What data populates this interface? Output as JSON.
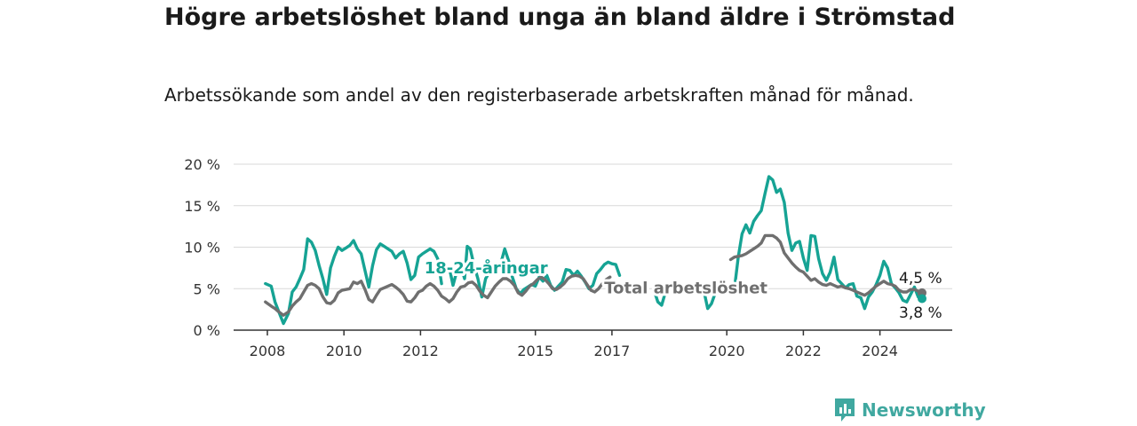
{
  "title": "Högre arbetslöshet bland unga än bland äldre i Strömstad",
  "subtitle": "Arbetssökande som andel av den registerbaserade arbetskraften månad för månad.",
  "brand": {
    "name": "Newsworthy",
    "icon": "newsworthy-logo-icon"
  },
  "colors": {
    "youth": "#16a394",
    "total": "#6f6f6f",
    "grid": "#d9d9d9",
    "axis": "#333333",
    "brand": "#40a8a0"
  },
  "chart_data": {
    "type": "line",
    "title": "Högre arbetslöshet bland unga än bland äldre i Strömstad",
    "xlabel": "",
    "ylabel": "",
    "xlim": [
      2008.0,
      2025.1
    ],
    "ylim": [
      0,
      20
    ],
    "y_ticks": [
      0,
      5,
      10,
      15,
      20
    ],
    "y_tick_labels": [
      "0 %",
      "5 %",
      "10 %",
      "15 %",
      "20 %"
    ],
    "x_ticks": [
      2008,
      2010,
      2012,
      2015,
      2017,
      2020,
      2022,
      2024
    ],
    "x_tick_labels": [
      "2008",
      "2010",
      "2012",
      "2015",
      "2017",
      "2020",
      "2022",
      "2024"
    ],
    "x_tick_positions": [
      2008.0,
      2010.0,
      2012.0,
      2015.0,
      2017.0,
      2020.0,
      2022.0,
      2024.0
    ],
    "grid": true,
    "legend": "inline labels",
    "series": [
      {
        "name": "18-24-åringar",
        "label_position": [
          2012.1,
          7.6
        ],
        "end_label": "3,8 %",
        "points": [
          [
            2007.95,
            5.6
          ],
          [
            2008.1,
            5.3
          ],
          [
            2008.2,
            3.4
          ],
          [
            2008.3,
            2.2
          ],
          [
            2008.42,
            0.8
          ],
          [
            2008.55,
            2.0
          ],
          [
            2008.65,
            4.6
          ],
          [
            2008.75,
            5.2
          ],
          [
            2008.85,
            6.2
          ],
          [
            2008.95,
            7.3
          ],
          [
            2009.05,
            11.0
          ],
          [
            2009.15,
            10.6
          ],
          [
            2009.25,
            9.6
          ],
          [
            2009.35,
            7.8
          ],
          [
            2009.45,
            6.2
          ],
          [
            2009.55,
            4.3
          ],
          [
            2009.65,
            7.5
          ],
          [
            2009.75,
            8.9
          ],
          [
            2009.85,
            10.0
          ],
          [
            2009.95,
            9.6
          ],
          [
            2010.05,
            9.9
          ],
          [
            2010.15,
            10.2
          ],
          [
            2010.25,
            10.8
          ],
          [
            2010.35,
            9.8
          ],
          [
            2010.45,
            9.2
          ],
          [
            2010.55,
            7.2
          ],
          [
            2010.65,
            5.2
          ],
          [
            2010.75,
            7.8
          ],
          [
            2010.85,
            9.7
          ],
          [
            2010.95,
            10.4
          ],
          [
            2011.05,
            10.1
          ],
          [
            2011.15,
            9.8
          ],
          [
            2011.25,
            9.5
          ],
          [
            2011.35,
            8.7
          ],
          [
            2011.45,
            9.2
          ],
          [
            2011.55,
            9.5
          ],
          [
            2011.65,
            8.1
          ],
          [
            2011.75,
            6.1
          ],
          [
            2011.85,
            6.6
          ],
          [
            2011.95,
            8.8
          ],
          [
            2012.05,
            9.2
          ],
          [
            2012.15,
            9.5
          ],
          [
            2012.25,
            9.8
          ],
          [
            2012.35,
            9.5
          ],
          [
            2012.45,
            8.6
          ],
          [
            2012.55,
            5.6
          ]
        ],
        "points_b": [
          [
            2012.75,
            7.6
          ],
          [
            2012.85,
            5.4
          ],
          [
            2012.95,
            7.1
          ],
          [
            2013.05,
            7.8
          ],
          [
            2013.15,
            6.2
          ],
          [
            2013.22,
            10.1
          ],
          [
            2013.3,
            9.8
          ],
          [
            2013.4,
            7.8
          ],
          [
            2013.5,
            6.2
          ],
          [
            2013.6,
            4.0
          ],
          [
            2013.7,
            6.2
          ],
          [
            2013.8,
            7.0
          ],
          [
            2013.9,
            7.6
          ],
          [
            2014.0,
            6.9
          ],
          [
            2014.1,
            8.1
          ],
          [
            2014.2,
            9.8
          ],
          [
            2014.3,
            8.4
          ],
          [
            2014.4,
            6.4
          ],
          [
            2014.5,
            5.0
          ],
          [
            2014.6,
            4.4
          ],
          [
            2014.7,
            4.9
          ],
          [
            2014.8,
            5.2
          ],
          [
            2014.9,
            5.5
          ],
          [
            2015.0,
            5.3
          ],
          [
            2015.1,
            6.4
          ],
          [
            2015.2,
            5.9
          ],
          [
            2015.3,
            6.6
          ],
          [
            2015.4,
            5.4
          ],
          [
            2015.5,
            4.8
          ],
          [
            2015.6,
            5.3
          ],
          [
            2015.7,
            5.8
          ],
          [
            2015.8,
            7.3
          ],
          [
            2015.9,
            7.2
          ],
          [
            2016.0,
            6.6
          ],
          [
            2016.1,
            7.1
          ],
          [
            2016.2,
            6.5
          ],
          [
            2016.3,
            5.8
          ],
          [
            2016.4,
            5.0
          ],
          [
            2016.5,
            5.4
          ],
          [
            2016.6,
            6.8
          ],
          [
            2016.7,
            7.3
          ],
          [
            2016.8,
            7.9
          ],
          [
            2016.9,
            8.2
          ],
          [
            2017.0,
            8.0
          ],
          [
            2017.1,
            7.9
          ],
          [
            2017.2,
            6.6
          ]
        ],
        "points_c": [
          [
            2018.1,
            4.8
          ],
          [
            2018.2,
            3.4
          ],
          [
            2018.3,
            3.0
          ],
          [
            2018.4,
            4.6
          ]
        ],
        "points_d": [
          [
            2019.4,
            4.8
          ],
          [
            2019.5,
            2.6
          ],
          [
            2019.6,
            3.2
          ],
          [
            2019.7,
            4.5
          ],
          [
            2019.8,
            5.0
          ],
          [
            2019.9,
            4.7
          ],
          [
            2020.0,
            5.0
          ],
          [
            2020.1,
            4.5
          ],
          [
            2020.2,
            5.0
          ],
          [
            2020.3,
            8.8
          ],
          [
            2020.4,
            11.6
          ],
          [
            2020.5,
            12.7
          ],
          [
            2020.6,
            11.7
          ],
          [
            2020.7,
            13.1
          ],
          [
            2020.8,
            13.8
          ],
          [
            2020.9,
            14.4
          ],
          [
            2021.0,
            16.5
          ],
          [
            2021.1,
            18.5
          ],
          [
            2021.2,
            18.1
          ],
          [
            2021.3,
            16.6
          ],
          [
            2021.4,
            17.0
          ],
          [
            2021.5,
            15.4
          ],
          [
            2021.6,
            11.7
          ],
          [
            2021.7,
            9.6
          ],
          [
            2021.8,
            10.5
          ],
          [
            2021.9,
            10.7
          ],
          [
            2022.0,
            8.7
          ],
          [
            2022.1,
            7.2
          ],
          [
            2022.2,
            11.4
          ],
          [
            2022.3,
            11.3
          ],
          [
            2022.4,
            8.6
          ],
          [
            2022.5,
            6.8
          ],
          [
            2022.6,
            6.0
          ],
          [
            2022.7,
            7.0
          ],
          [
            2022.8,
            8.8
          ],
          [
            2022.9,
            6.1
          ],
          [
            2023.0,
            5.6
          ],
          [
            2023.1,
            5.1
          ],
          [
            2023.2,
            5.5
          ],
          [
            2023.3,
            5.6
          ],
          [
            2023.4,
            4.1
          ],
          [
            2023.5,
            3.9
          ],
          [
            2023.6,
            2.6
          ],
          [
            2023.7,
            4.0
          ],
          [
            2023.8,
            4.6
          ],
          [
            2023.9,
            5.5
          ],
          [
            2024.0,
            6.6
          ],
          [
            2024.1,
            8.3
          ],
          [
            2024.2,
            7.5
          ],
          [
            2024.3,
            5.6
          ],
          [
            2024.4,
            5.1
          ],
          [
            2024.5,
            4.5
          ],
          [
            2024.6,
            3.6
          ],
          [
            2024.7,
            3.4
          ],
          [
            2024.8,
            4.3
          ],
          [
            2024.9,
            5.2
          ],
          [
            2025.0,
            4.0
          ],
          [
            2025.1,
            3.8
          ]
        ]
      },
      {
        "name": "Total arbetslöshet",
        "label_position": [
          2016.8,
          5.2
        ],
        "end_label": "4,5 %",
        "points": [
          [
            2007.95,
            3.4
          ],
          [
            2008.1,
            2.9
          ],
          [
            2008.2,
            2.6
          ],
          [
            2008.3,
            2.2
          ],
          [
            2008.42,
            1.8
          ],
          [
            2008.55,
            2.2
          ],
          [
            2008.65,
            2.9
          ],
          [
            2008.75,
            3.4
          ],
          [
            2008.85,
            3.8
          ],
          [
            2008.95,
            4.6
          ],
          [
            2009.05,
            5.4
          ],
          [
            2009.15,
            5.6
          ],
          [
            2009.25,
            5.4
          ],
          [
            2009.35,
            5.0
          ],
          [
            2009.45,
            4.0
          ],
          [
            2009.55,
            3.3
          ],
          [
            2009.65,
            3.2
          ],
          [
            2009.75,
            3.6
          ],
          [
            2009.85,
            4.5
          ],
          [
            2009.95,
            4.8
          ],
          [
            2010.05,
            4.9
          ],
          [
            2010.15,
            5.0
          ],
          [
            2010.25,
            5.8
          ],
          [
            2010.35,
            5.6
          ],
          [
            2010.45,
            5.9
          ],
          [
            2010.55,
            4.9
          ],
          [
            2010.65,
            3.7
          ],
          [
            2010.75,
            3.4
          ],
          [
            2010.85,
            4.2
          ],
          [
            2010.95,
            4.9
          ],
          [
            2011.05,
            5.1
          ],
          [
            2011.15,
            5.3
          ],
          [
            2011.25,
            5.5
          ],
          [
            2011.35,
            5.2
          ],
          [
            2011.45,
            4.8
          ],
          [
            2011.55,
            4.3
          ],
          [
            2011.65,
            3.5
          ],
          [
            2011.75,
            3.4
          ],
          [
            2011.85,
            3.9
          ],
          [
            2011.95,
            4.6
          ],
          [
            2012.05,
            4.8
          ],
          [
            2012.15,
            5.3
          ],
          [
            2012.25,
            5.6
          ],
          [
            2012.35,
            5.3
          ],
          [
            2012.45,
            4.8
          ],
          [
            2012.55,
            4.1
          ],
          [
            2012.65,
            3.8
          ],
          [
            2012.75,
            3.4
          ],
          [
            2012.85,
            3.8
          ],
          [
            2012.95,
            4.6
          ],
          [
            2013.05,
            5.2
          ],
          [
            2013.15,
            5.3
          ],
          [
            2013.25,
            5.7
          ],
          [
            2013.35,
            5.8
          ],
          [
            2013.45,
            5.4
          ],
          [
            2013.55,
            4.7
          ],
          [
            2013.65,
            4.2
          ],
          [
            2013.75,
            3.9
          ],
          [
            2013.85,
            4.6
          ],
          [
            2013.95,
            5.3
          ],
          [
            2014.05,
            5.8
          ],
          [
            2014.15,
            6.2
          ],
          [
            2014.25,
            6.2
          ],
          [
            2014.35,
            5.9
          ],
          [
            2014.45,
            5.4
          ],
          [
            2014.55,
            4.5
          ],
          [
            2014.65,
            4.2
          ],
          [
            2014.75,
            4.7
          ],
          [
            2014.85,
            5.3
          ],
          [
            2014.95,
            5.6
          ],
          [
            2015.05,
            6.1
          ],
          [
            2015.15,
            6.4
          ],
          [
            2015.25,
            6.1
          ],
          [
            2015.35,
            5.6
          ],
          [
            2015.45,
            5.0
          ],
          [
            2015.55,
            4.9
          ],
          [
            2015.65,
            5.2
          ],
          [
            2015.75,
            5.6
          ],
          [
            2015.85,
            6.2
          ],
          [
            2015.95,
            6.5
          ],
          [
            2016.05,
            6.6
          ],
          [
            2016.15,
            6.5
          ],
          [
            2016.25,
            6.2
          ],
          [
            2016.35,
            5.5
          ],
          [
            2016.45,
            4.8
          ],
          [
            2016.55,
            4.6
          ],
          [
            2016.65,
            5.0
          ],
          [
            2016.75,
            5.6
          ],
          [
            2016.85,
            6.1
          ],
          [
            2016.95,
            6.4
          ]
        ],
        "points_b": [
          [
            2020.1,
            8.5
          ],
          [
            2020.2,
            8.8
          ],
          [
            2020.3,
            8.9
          ],
          [
            2020.4,
            9.0
          ],
          [
            2020.5,
            9.2
          ],
          [
            2020.6,
            9.5
          ],
          [
            2020.7,
            9.8
          ],
          [
            2020.8,
            10.1
          ],
          [
            2020.9,
            10.5
          ],
          [
            2021.0,
            11.4
          ],
          [
            2021.1,
            11.4
          ],
          [
            2021.2,
            11.4
          ],
          [
            2021.3,
            11.1
          ],
          [
            2021.4,
            10.6
          ],
          [
            2021.5,
            9.3
          ],
          [
            2021.6,
            8.7
          ],
          [
            2021.7,
            8.1
          ],
          [
            2021.8,
            7.6
          ],
          [
            2021.9,
            7.2
          ],
          [
            2022.0,
            7.0
          ],
          [
            2022.1,
            6.5
          ],
          [
            2022.2,
            6.0
          ],
          [
            2022.3,
            6.2
          ],
          [
            2022.4,
            5.8
          ],
          [
            2022.5,
            5.5
          ],
          [
            2022.6,
            5.4
          ],
          [
            2022.7,
            5.6
          ],
          [
            2022.8,
            5.4
          ],
          [
            2022.9,
            5.2
          ],
          [
            2023.0,
            5.3
          ],
          [
            2023.1,
            5.1
          ],
          [
            2023.2,
            5.0
          ],
          [
            2023.3,
            4.8
          ],
          [
            2023.4,
            4.6
          ],
          [
            2023.5,
            4.4
          ],
          [
            2023.6,
            4.2
          ],
          [
            2023.7,
            4.5
          ],
          [
            2023.8,
            4.9
          ],
          [
            2023.9,
            5.3
          ],
          [
            2024.0,
            5.6
          ],
          [
            2024.1,
            5.9
          ],
          [
            2024.2,
            5.6
          ],
          [
            2024.3,
            5.5
          ],
          [
            2024.4,
            5.3
          ],
          [
            2024.5,
            4.8
          ],
          [
            2024.6,
            4.6
          ],
          [
            2024.7,
            4.6
          ],
          [
            2024.8,
            4.9
          ],
          [
            2024.9,
            4.9
          ],
          [
            2025.0,
            4.7
          ],
          [
            2025.1,
            4.5
          ]
        ]
      }
    ]
  }
}
